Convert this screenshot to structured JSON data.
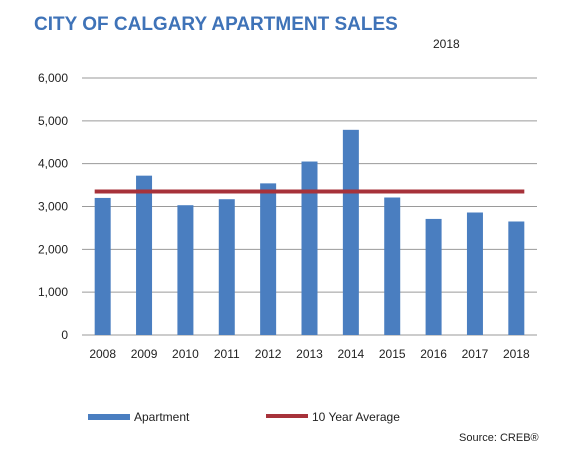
{
  "title": "CITY OF CALGARY APARTMENT SALES",
  "year_label": "2018",
  "source": "Source: CREB®",
  "colors": {
    "bar": "#4a7ec0",
    "average_line": "#a7323a",
    "title": "#3f73b8",
    "grid": "#9a9a9a"
  },
  "chart_data": {
    "type": "bar",
    "categories": [
      "2008",
      "2009",
      "2010",
      "2011",
      "2012",
      "2013",
      "2014",
      "2015",
      "2016",
      "2017",
      "2018"
    ],
    "series": [
      {
        "name": "Apartment",
        "type": "bar",
        "values": [
          3200,
          3720,
          3030,
          3170,
          3540,
          4050,
          4790,
          3210,
          2710,
          2860,
          2650
        ]
      },
      {
        "name": "10 Year Average",
        "type": "line",
        "values": [
          3350,
          3350,
          3350,
          3350,
          3350,
          3350,
          3350,
          3350,
          3350,
          3350,
          3350
        ]
      }
    ],
    "y_ticks": [
      0,
      1000,
      2000,
      3000,
      4000,
      5000,
      6000
    ],
    "y_tick_labels": [
      "0",
      "1,000",
      "2,000",
      "3,000",
      "4,000",
      "5,000",
      "6,000"
    ],
    "ylim": [
      0,
      6000
    ],
    "grid": true,
    "legend": "bottom"
  }
}
